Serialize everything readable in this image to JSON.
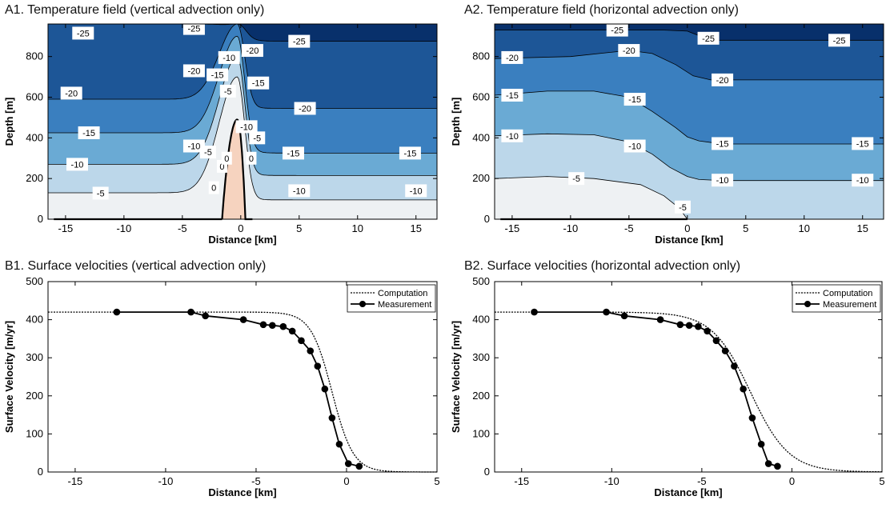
{
  "chart_data": [
    {
      "id": "A1",
      "type": "heatmap",
      "title": "A1. Temperature field (vertical advection only)",
      "xlabel": "Distance [km]",
      "ylabel": "Depth [m]",
      "xlim": [
        -16.5,
        16.8
      ],
      "ylim": [
        0,
        960
      ],
      "xticks": [
        -15,
        -10,
        -5,
        0,
        5,
        10,
        15
      ],
      "yticks": [
        0,
        200,
        400,
        600,
        800
      ],
      "contour_levels": [
        -25,
        -20,
        -15,
        -10,
        -5,
        0
      ],
      "colors": [
        "#08306b",
        "#1d5697",
        "#3a7fbf",
        "#6aaad4",
        "#bcd7ea",
        "#eef1f3",
        "#f6d3bf"
      ],
      "far_field_depths": {
        "-25": 875,
        "-20": 545,
        "-15": 325,
        "-10": 215,
        "-5": 95,
        "0": 0
      },
      "upstream_depths": {
        "-25": 960,
        "-20": 590,
        "-15": 425,
        "-10": 270,
        "-5": 130,
        "0": 0
      },
      "peak_x": -0.3,
      "peak_depths": {
        "-25": 960,
        "-20": 960,
        "-15": 900,
        "-10": 800,
        "-5": 700,
        "0": 490
      },
      "contour_labels": [
        {
          "text": "-25",
          "x": -13.5,
          "y": 915
        },
        {
          "text": "-25",
          "x": -4.0,
          "y": 938
        },
        {
          "text": "-25",
          "x": 5.0,
          "y": 875
        },
        {
          "text": "-20",
          "x": -14.5,
          "y": 620
        },
        {
          "text": "-20",
          "x": -4.0,
          "y": 730
        },
        {
          "text": "-20",
          "x": 1.0,
          "y": 830
        },
        {
          "text": "-20",
          "x": 5.5,
          "y": 545
        },
        {
          "text": "-15",
          "x": -13.0,
          "y": 425
        },
        {
          "text": "-15",
          "x": -2.0,
          "y": 710
        },
        {
          "text": "-15",
          "x": 1.5,
          "y": 670
        },
        {
          "text": "-15",
          "x": 4.5,
          "y": 325
        },
        {
          "text": "-15",
          "x": 14.5,
          "y": 325
        },
        {
          "text": "-10",
          "x": -14.0,
          "y": 270
        },
        {
          "text": "-10",
          "x": -4.0,
          "y": 360
        },
        {
          "text": "-10",
          "x": -1.0,
          "y": 795
        },
        {
          "text": "-10",
          "x": 0.5,
          "y": 455
        },
        {
          "text": "-10",
          "x": 5.0,
          "y": 140
        },
        {
          "text": "-10",
          "x": 15.0,
          "y": 140
        },
        {
          "text": "-5",
          "x": -12.0,
          "y": 128
        },
        {
          "text": "-5",
          "x": -2.8,
          "y": 330
        },
        {
          "text": "-5",
          "x": -1.1,
          "y": 630
        },
        {
          "text": "-5",
          "x": 1.4,
          "y": 400
        },
        {
          "text": "0",
          "x": -2.3,
          "y": 155
        },
        {
          "text": "0",
          "x": -1.6,
          "y": 260
        },
        {
          "text": "0",
          "x": -1.2,
          "y": 300
        },
        {
          "text": "0",
          "x": 0.9,
          "y": 300
        }
      ]
    },
    {
      "id": "A2",
      "type": "heatmap",
      "title": "A2. Temperature field (horizontal advection only)",
      "xlabel": "Distance [km]",
      "ylabel": "Depth [m]",
      "xlim": [
        -16.5,
        16.8
      ],
      "ylim": [
        0,
        960
      ],
      "xticks": [
        -15,
        -10,
        -5,
        0,
        5,
        10,
        15
      ],
      "yticks": [
        0,
        200,
        400,
        600,
        800
      ],
      "contour_levels": [
        -25,
        -20,
        -15,
        -10,
        -5
      ],
      "colors": [
        "#08306b",
        "#1d5697",
        "#3a7fbf",
        "#6aaad4",
        "#bcd7ea",
        "#eef1f3"
      ],
      "contours": {
        "-25": [
          [
            -16.5,
            930
          ],
          [
            -10,
            930
          ],
          [
            -5,
            930
          ],
          [
            -2,
            930
          ],
          [
            0,
            925
          ],
          [
            2,
            880
          ],
          [
            16.8,
            880
          ]
        ],
        "-20": [
          [
            -16.5,
            790
          ],
          [
            -10,
            800
          ],
          [
            -5,
            830
          ],
          [
            -3,
            815
          ],
          [
            -1,
            760
          ],
          [
            0.5,
            705
          ],
          [
            2,
            685
          ],
          [
            16.8,
            685
          ]
        ],
        "-15": [
          [
            -16.5,
            610
          ],
          [
            -12,
            630
          ],
          [
            -8,
            630
          ],
          [
            -5,
            600
          ],
          [
            -3,
            530
          ],
          [
            -1,
            450
          ],
          [
            0,
            405
          ],
          [
            1,
            385
          ],
          [
            3,
            370
          ],
          [
            16.8,
            370
          ]
        ],
        "-10": [
          [
            -16.5,
            410
          ],
          [
            -12,
            420
          ],
          [
            -8,
            415
          ],
          [
            -5,
            380
          ],
          [
            -3,
            320
          ],
          [
            -1.5,
            255
          ],
          [
            0,
            210
          ],
          [
            1,
            195
          ],
          [
            3,
            190
          ],
          [
            16.8,
            190
          ]
        ],
        "-5": [
          [
            -16.5,
            200
          ],
          [
            -12,
            210
          ],
          [
            -8,
            200
          ],
          [
            -4,
            170
          ],
          [
            -2,
            115
          ],
          [
            -0.7,
            55
          ],
          [
            0,
            0
          ]
        ]
      },
      "contour_labels": [
        {
          "text": "-25",
          "x": -6.0,
          "y": 930
        },
        {
          "text": "-25",
          "x": 1.8,
          "y": 890
        },
        {
          "text": "-25",
          "x": 13.0,
          "y": 880
        },
        {
          "text": "-20",
          "x": -15.0,
          "y": 795
        },
        {
          "text": "-20",
          "x": -5.0,
          "y": 830
        },
        {
          "text": "-20",
          "x": 3.0,
          "y": 685
        },
        {
          "text": "-15",
          "x": -15.0,
          "y": 610
        },
        {
          "text": "-15",
          "x": -4.5,
          "y": 590
        },
        {
          "text": "-15",
          "x": 3.0,
          "y": 372
        },
        {
          "text": "-15",
          "x": 15.0,
          "y": 372
        },
        {
          "text": "-10",
          "x": -15.0,
          "y": 410
        },
        {
          "text": "-10",
          "x": -4.5,
          "y": 360
        },
        {
          "text": "-10",
          "x": 3.0,
          "y": 192
        },
        {
          "text": "-10",
          "x": 15.0,
          "y": 192
        },
        {
          "text": "-5",
          "x": -9.5,
          "y": 200
        },
        {
          "text": "-5",
          "x": -0.4,
          "y": 60
        }
      ]
    },
    {
      "id": "B1",
      "type": "line",
      "title": "B1. Surface velocities (vertical advection only)",
      "xlabel": "Distance [km]",
      "ylabel": "Surface Velocity [m/yr]",
      "xlim": [
        -16.5,
        5
      ],
      "ylim": [
        0,
        500
      ],
      "xticks": [
        -15,
        -10,
        -5,
        0,
        5
      ],
      "yticks": [
        0,
        100,
        200,
        300,
        400,
        500
      ],
      "legend": "top-right",
      "series": [
        {
          "name": "Computation",
          "style": "dotted",
          "x0": -0.8,
          "width": 1.75,
          "vmax": 420
        },
        {
          "name": "Measurement",
          "style": "solid-markers",
          "x": [
            -12.7,
            -8.6,
            -7.8,
            -5.7,
            -4.6,
            -4.1,
            -3.5,
            -3.0,
            -2.5,
            -2.0,
            -1.6,
            -1.2,
            -0.8,
            -0.4,
            0.1,
            0.7
          ],
          "y": [
            420,
            420,
            410,
            400,
            387,
            385,
            382,
            370,
            345,
            318,
            278,
            218,
            142,
            73,
            22,
            15
          ]
        }
      ]
    },
    {
      "id": "B2",
      "type": "line",
      "title": "B2. Surface velocities (horizontal advection only)",
      "xlabel": "Distance [km]",
      "ylabel": "Surface Velocity [m/yr]",
      "xlim": [
        -16.5,
        5
      ],
      "ylim": [
        0,
        500
      ],
      "xticks": [
        -15,
        -10,
        -5,
        0,
        5
      ],
      "yticks": [
        0,
        100,
        200,
        300,
        400,
        500
      ],
      "legend": "top-right",
      "series": [
        {
          "name": "Computation",
          "style": "dotted",
          "x0": -2.3,
          "width": 3.2,
          "vmax": 420
        },
        {
          "name": "Measurement",
          "style": "solid-markers",
          "x": [
            -14.3,
            -10.3,
            -9.3,
            -7.3,
            -6.2,
            -5.7,
            -5.2,
            -4.7,
            -4.2,
            -3.7,
            -3.2,
            -2.7,
            -2.2,
            -1.7,
            -1.3,
            -0.8
          ],
          "y": [
            420,
            420,
            410,
            400,
            387,
            385,
            382,
            370,
            345,
            318,
            278,
            218,
            142,
            73,
            22,
            15
          ]
        }
      ]
    }
  ]
}
